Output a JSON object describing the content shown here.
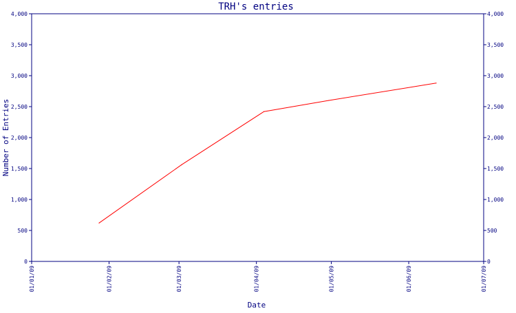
{
  "chart_data": {
    "type": "line",
    "title": "TRH's entries",
    "xlabel": "Date",
    "ylabel": "Number of Entries",
    "x_ticks": [
      "01/01/09",
      "01/02/09",
      "01/03/09",
      "01/04/09",
      "01/05/09",
      "01/06/09",
      "01/07/09"
    ],
    "y_ticks": [
      "0",
      "500",
      "1,000",
      "1,500",
      "2,000",
      "2,500",
      "3,000",
      "3,500",
      "4,000"
    ],
    "ylim": [
      0,
      4000
    ],
    "xlim": [
      "2009-01-01",
      "2009-07-01"
    ],
    "grid": false,
    "series": [
      {
        "x": [
          "2009-01-28",
          "2009-03-02",
          "2009-04-04",
          "2009-04-30",
          "2009-06-12"
        ],
        "values": [
          620,
          1560,
          2420,
          2600,
          2880
        ]
      }
    ],
    "colors": {
      "line": "#ff0000",
      "axis": "#000080",
      "text": "#000080"
    }
  }
}
